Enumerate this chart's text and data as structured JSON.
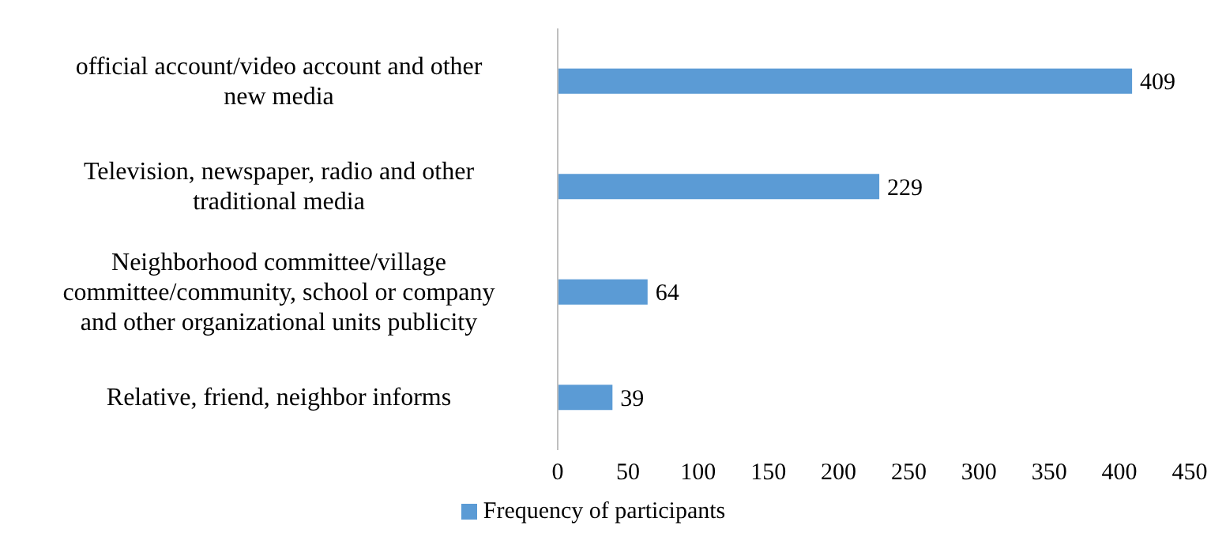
{
  "chart_data": {
    "type": "bar",
    "orientation": "horizontal",
    "categories": [
      "official account/video account and other new media",
      "Television, newspaper, radio and other traditional media",
      "Neighborhood committee/village committee/community, school or company and other organizational units publicity",
      "Relative, friend, neighbor informs"
    ],
    "series": [
      {
        "name": "Frequency of participants",
        "color": "#5b9bd5",
        "values": [
          409,
          229,
          64,
          39
        ]
      }
    ],
    "xlim": [
      0,
      450
    ],
    "xticks": [
      0,
      50,
      100,
      150,
      200,
      250,
      300,
      350,
      400,
      450
    ],
    "data_labels": true,
    "grid": false,
    "legend": "bottom"
  }
}
